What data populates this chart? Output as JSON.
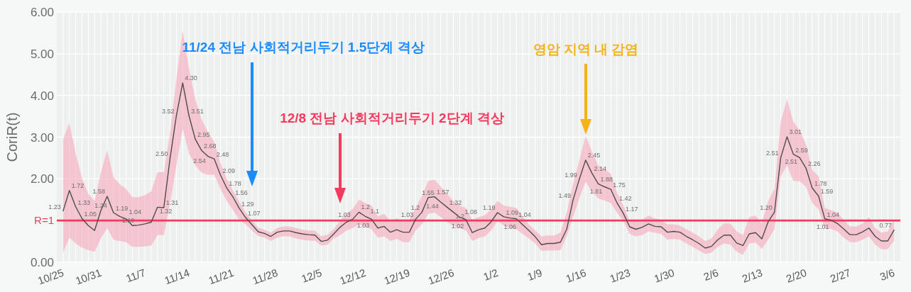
{
  "chart_data": {
    "type": "line",
    "ylabel": "CoriR(t)",
    "categories": [
      "10/25",
      null,
      null,
      null,
      null,
      null,
      "10/31",
      null,
      null,
      null,
      null,
      null,
      null,
      "11/7",
      null,
      null,
      null,
      null,
      null,
      null,
      "11/14",
      null,
      null,
      null,
      null,
      null,
      null,
      "11/21",
      null,
      null,
      null,
      null,
      null,
      null,
      "11/28",
      null,
      null,
      null,
      null,
      null,
      null,
      "12/5",
      null,
      null,
      null,
      null,
      null,
      null,
      "12/12",
      null,
      null,
      null,
      null,
      null,
      null,
      "12/19",
      null,
      null,
      null,
      null,
      null,
      null,
      "12/26",
      null,
      null,
      null,
      null,
      null,
      null,
      "1/2",
      null,
      null,
      null,
      null,
      null,
      null,
      "1/9",
      null,
      null,
      null,
      null,
      null,
      null,
      "1/16",
      null,
      null,
      null,
      null,
      null,
      null,
      "1/23",
      null,
      null,
      null,
      null,
      null,
      null,
      "1/30",
      null,
      null,
      null,
      null,
      null,
      null,
      "2/6",
      null,
      null,
      null,
      null,
      null,
      null,
      "2/13",
      null,
      null,
      null,
      null,
      null,
      null,
      "2/20",
      null,
      null,
      null,
      null,
      null,
      null,
      "2/27",
      null,
      null,
      null,
      null,
      null,
      null,
      "3/6"
    ],
    "ylim": [
      0,
      6
    ],
    "yticks": [
      {
        "value": 0,
        "label": "0.00"
      },
      {
        "value": 2,
        "label": "2.00"
      },
      {
        "value": 3,
        "label": "3.00"
      },
      {
        "value": 4,
        "label": "4.00"
      },
      {
        "value": 5,
        "label": "5.00"
      },
      {
        "value": 6,
        "label": "6.00"
      }
    ],
    "grid": true,
    "series": [
      {
        "color": "#4d4d4d",
        "values": [
          1.23,
          1.72,
          1.33,
          1.05,
          0.88,
          0.76,
          1.24,
          1.58,
          1.19,
          1.1,
          1.04,
          0.88,
          0.89,
          0.92,
          0.96,
          1.32,
          1.31,
          2.5,
          3.52,
          4.3,
          3.51,
          2.95,
          2.68,
          2.54,
          2.48,
          2.09,
          1.78,
          1.56,
          1.29,
          1.07,
          0.9,
          0.73,
          0.69,
          0.62,
          0.72,
          0.75,
          0.75,
          0.71,
          0.68,
          0.66,
          0.65,
          0.5,
          0.53,
          0.68,
          0.84,
          0.96,
          1.03,
          1.2,
          1.1,
          1.03,
          0.82,
          0.86,
          0.72,
          0.78,
          0.72,
          0.72,
          1.03,
          1.2,
          1.55,
          1.57,
          1.44,
          1.32,
          1.2,
          1.08,
          1.02,
          0.71,
          0.78,
          0.82,
          0.97,
          1.19,
          1.09,
          1.06,
          1.04,
          0.9,
          0.76,
          0.61,
          0.42,
          0.45,
          0.45,
          0.48,
          0.79,
          1.49,
          1.99,
          2.45,
          2.14,
          1.88,
          1.81,
          1.75,
          1.42,
          1.17,
          0.85,
          0.79,
          0.84,
          0.92,
          0.86,
          0.85,
          0.72,
          0.74,
          0.72,
          0.62,
          0.54,
          0.45,
          0.34,
          0.38,
          0.54,
          0.65,
          0.65,
          0.46,
          0.4,
          0.68,
          0.71,
          0.56,
          0.97,
          1.2,
          2.51,
          3.01,
          2.59,
          2.51,
          2.26,
          1.78,
          1.59,
          1.04,
          1.01,
          0.93,
          0.8,
          0.66,
          0.66,
          0.73,
          0.82,
          0.62,
          0.51,
          0.51,
          0.77
        ],
        "upper": [
          2.95,
          3.34,
          2.61,
          2.01,
          1.64,
          1.47,
          2.15,
          2.69,
          2.04,
          1.87,
          1.76,
          1.56,
          1.56,
          1.61,
          1.7,
          2.16,
          2.16,
          3.1,
          4.4,
          5.55,
          4.65,
          3.91,
          3.43,
          3.12,
          2.89,
          2.38,
          2.0,
          1.72,
          1.45,
          1.2,
          1.0,
          0.83,
          0.78,
          0.71,
          0.82,
          0.86,
          0.86,
          0.82,
          0.78,
          0.76,
          0.76,
          0.62,
          0.66,
          0.8,
          1.0,
          1.16,
          1.28,
          1.5,
          1.42,
          1.36,
          1.1,
          1.16,
          0.99,
          1.05,
          0.99,
          1.02,
          1.3,
          1.59,
          1.95,
          1.98,
          1.81,
          1.64,
          1.47,
          1.36,
          1.3,
          1.02,
          1.08,
          1.13,
          1.27,
          1.47,
          1.36,
          1.33,
          1.3,
          1.1,
          0.91,
          0.76,
          0.62,
          0.64,
          0.64,
          0.71,
          1.19,
          1.87,
          2.44,
          3.03,
          2.66,
          2.32,
          2.24,
          2.12,
          1.67,
          1.36,
          0.99,
          0.99,
          1.02,
          1.12,
          1.05,
          1.02,
          0.91,
          0.91,
          0.88,
          0.79,
          0.71,
          0.62,
          0.51,
          0.57,
          0.79,
          0.93,
          0.93,
          0.74,
          0.65,
          1.08,
          1.12,
          0.93,
          1.47,
          1.76,
          3.37,
          3.91,
          3.37,
          3.17,
          2.83,
          2.21,
          2.07,
          1.3,
          1.25,
          1.19,
          1.02,
          0.86,
          0.86,
          0.93,
          1.08,
          0.82,
          0.71,
          0.74,
          1.02
        ],
        "lower": [
          0.23,
          0.59,
          0.45,
          0.35,
          0.29,
          0.25,
          0.57,
          0.82,
          0.54,
          0.51,
          0.48,
          0.37,
          0.37,
          0.38,
          0.4,
          0.65,
          0.65,
          1.42,
          2.32,
          3.2,
          2.61,
          2.32,
          2.15,
          2.1,
          2.1,
          1.76,
          1.47,
          1.25,
          1.02,
          0.91,
          0.76,
          0.63,
          0.59,
          0.51,
          0.59,
          0.62,
          0.62,
          0.57,
          0.54,
          0.52,
          0.52,
          0.4,
          0.42,
          0.57,
          0.65,
          0.76,
          0.82,
          0.91,
          0.85,
          0.79,
          0.59,
          0.62,
          0.51,
          0.56,
          0.48,
          0.48,
          0.76,
          0.91,
          1.16,
          1.19,
          1.08,
          0.96,
          0.88,
          0.82,
          0.76,
          0.51,
          0.58,
          0.62,
          0.76,
          0.99,
          0.88,
          0.82,
          0.79,
          0.68,
          0.57,
          0.45,
          0.27,
          0.28,
          0.28,
          0.29,
          0.62,
          1.08,
          1.53,
          1.93,
          1.7,
          1.53,
          1.48,
          1.42,
          1.19,
          0.99,
          0.68,
          0.62,
          0.65,
          0.74,
          0.71,
          0.68,
          0.54,
          0.56,
          0.54,
          0.45,
          0.37,
          0.28,
          0.2,
          0.23,
          0.37,
          0.45,
          0.42,
          0.25,
          0.18,
          0.45,
          0.47,
          0.32,
          0.54,
          0.79,
          2.07,
          2.32,
          1.95,
          1.94,
          1.81,
          1.42,
          1.27,
          0.82,
          0.8,
          0.74,
          0.59,
          0.48,
          0.48,
          0.54,
          0.62,
          0.42,
          0.31,
          0.31,
          0.51
        ],
        "value_labels": [
          "1.23",
          "1.72",
          "1.33",
          "1.05",
          null,
          null,
          "1.24",
          "1.58",
          "1.19",
          "1.10",
          "1.04",
          null,
          null,
          null,
          null,
          "1.32",
          "1.31",
          "2.50",
          "3.52",
          "4.30",
          "3.51",
          "2.95",
          "2.68",
          "2.54",
          "2.48",
          "2.09",
          "1.78",
          "1.56",
          "1.29",
          "1.07",
          null,
          null,
          null,
          null,
          null,
          null,
          null,
          null,
          null,
          null,
          null,
          null,
          null,
          null,
          null,
          null,
          "1.03",
          "1.2",
          "1.1",
          "1.03",
          null,
          null,
          null,
          null,
          null,
          null,
          "1.03",
          "1.2",
          "1.55",
          "1.57",
          "1.44",
          "1.32",
          "1.2",
          "1.08",
          "1.02",
          null,
          null,
          null,
          null,
          "1.19",
          "1.09",
          "1.06",
          "1.04",
          null,
          null,
          null,
          null,
          null,
          null,
          null,
          null,
          "1.49",
          "1.99",
          "2.45",
          "2.14",
          "1.88",
          "1.81",
          "1.75",
          "1.42",
          "1.17",
          null,
          null,
          null,
          null,
          null,
          null,
          null,
          null,
          null,
          null,
          null,
          null,
          null,
          null,
          null,
          null,
          null,
          null,
          null,
          null,
          null,
          null,
          null,
          "1.20",
          "2.51",
          "3.01",
          "2.59",
          "2.51",
          "2.26",
          "1.78",
          "1.59",
          "1.04",
          "1.01",
          null,
          null,
          null,
          null,
          null,
          null,
          null,
          null,
          null,
          "0.77"
        ]
      }
    ],
    "ref_lines": [
      {
        "axis": "y",
        "value": 1,
        "label": "R=1",
        "color": "#f33a5f"
      }
    ],
    "annotations": [
      "11/24 전남 사회적거리두기 1.5단계 격상",
      "12/8 전남 사회적거리두기 2단계 격상",
      "영암 지역 내 감염"
    ]
  }
}
